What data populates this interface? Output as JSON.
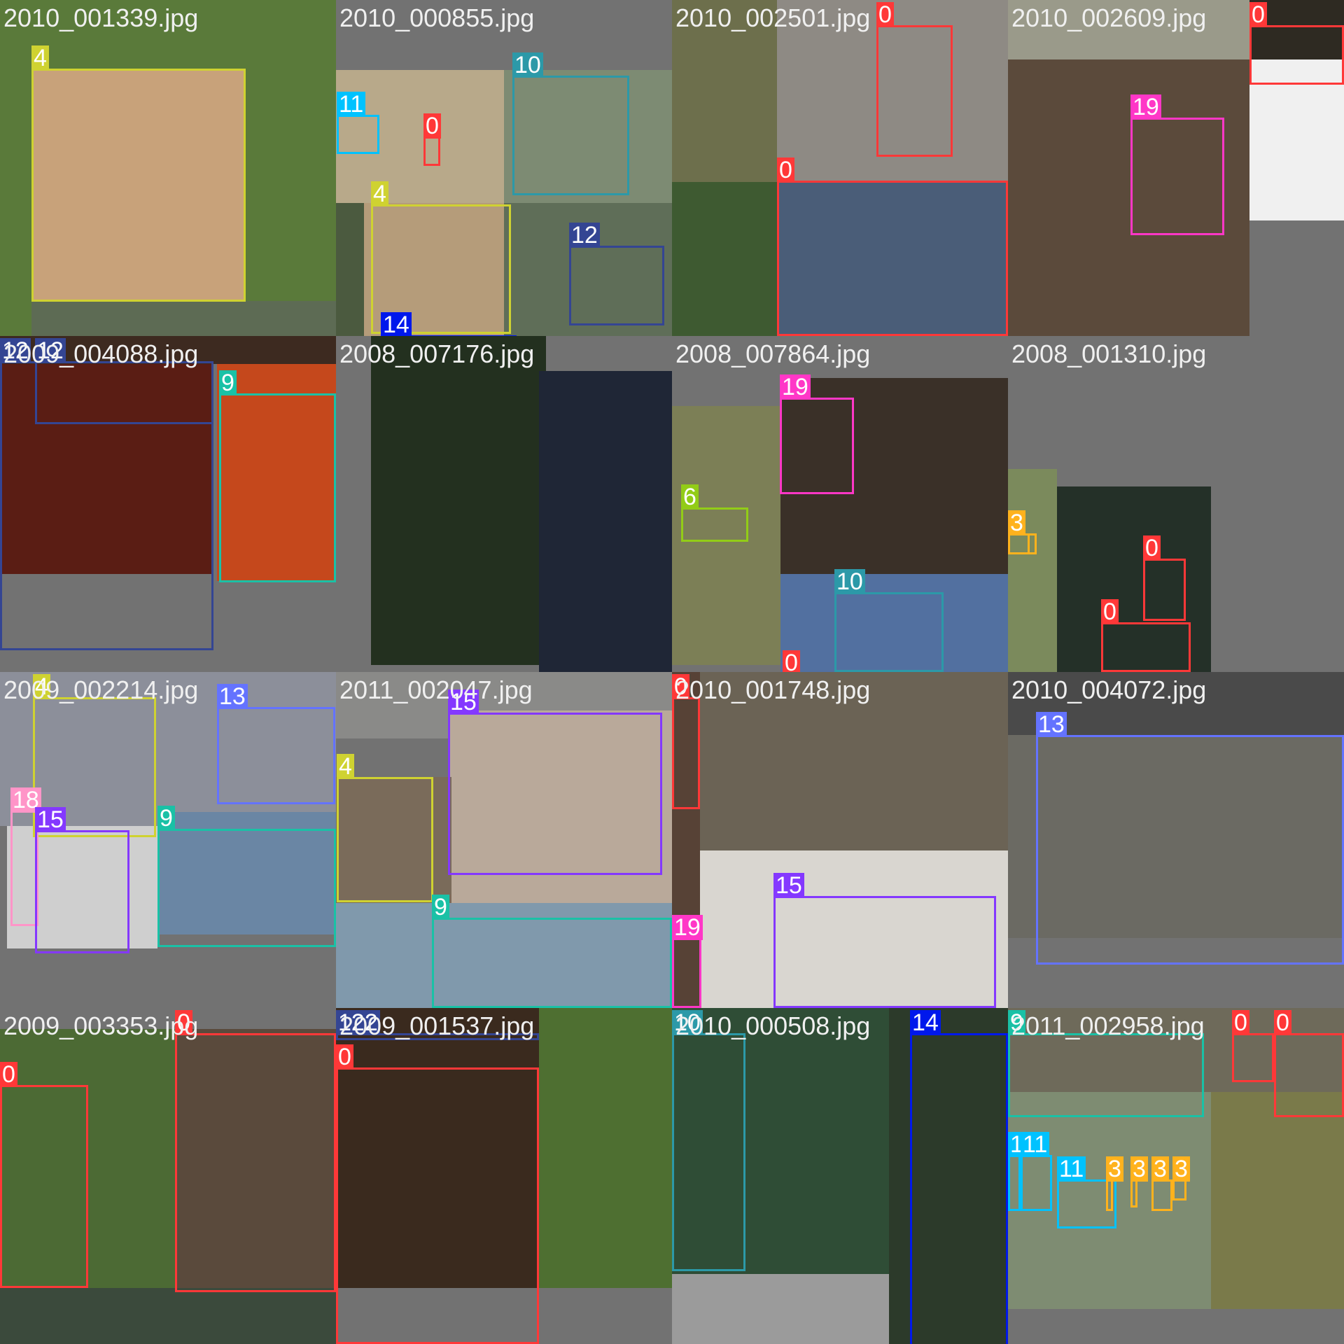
{
  "mosaic": {
    "tiles": [
      {
        "title": "2010_001339.jpg",
        "boxes": [
          {
            "label": "4"
          }
        ]
      },
      {
        "title": "2010_000855.jpg",
        "boxes": [
          {
            "label": "10"
          },
          {
            "label": "11"
          },
          {
            "label": "0"
          },
          {
            "label": "4"
          },
          {
            "label": "12"
          },
          {
            "label": "14"
          }
        ]
      },
      {
        "title": "2010_002501.jpg",
        "boxes": [
          {
            "label": "0"
          },
          {
            "label": "0"
          }
        ]
      },
      {
        "title": "2010_002609.jpg",
        "boxes": [
          {
            "label": "0"
          },
          {
            "label": "19"
          }
        ]
      },
      {
        "title": "2009_004088.jpg",
        "boxes": [
          {
            "label": "12"
          },
          {
            "label": "12"
          },
          {
            "label": "9"
          }
        ]
      },
      {
        "title": "2008_007176.jpg",
        "boxes": []
      },
      {
        "title": "2008_007864.jpg",
        "boxes": [
          {
            "label": "19"
          },
          {
            "label": "6"
          },
          {
            "label": "10"
          },
          {
            "label": "0"
          }
        ]
      },
      {
        "title": "2008_001310.jpg",
        "boxes": [
          {
            "label": "3"
          },
          {
            "label": "3"
          },
          {
            "label": "0"
          },
          {
            "label": "0"
          }
        ]
      },
      {
        "title": "2009_002214.jpg",
        "boxes": [
          {
            "label": "4"
          },
          {
            "label": "13"
          },
          {
            "label": "18"
          },
          {
            "label": "15"
          },
          {
            "label": "9"
          }
        ]
      },
      {
        "title": "2011_002047.jpg",
        "boxes": [
          {
            "label": "15"
          },
          {
            "label": "4"
          },
          {
            "label": "9"
          }
        ]
      },
      {
        "title": "2010_001748.jpg",
        "boxes": [
          {
            "label": "0"
          },
          {
            "label": "15"
          },
          {
            "label": "19"
          }
        ]
      },
      {
        "title": "2010_004072.jpg",
        "boxes": [
          {
            "label": "13"
          }
        ]
      },
      {
        "title": "2009_003353.jpg",
        "boxes": [
          {
            "label": "0"
          },
          {
            "label": "0"
          }
        ]
      },
      {
        "title": "2009_001537.jpg",
        "boxes": [
          {
            "label": "122"
          },
          {
            "label": "0"
          }
        ]
      },
      {
        "title": "2010_000508.jpg",
        "boxes": [
          {
            "label": "10"
          },
          {
            "label": "14"
          }
        ]
      },
      {
        "title": "2011_002958.jpg",
        "boxes": [
          {
            "label": "9"
          },
          {
            "label": "0"
          },
          {
            "label": "0"
          },
          {
            "label": "11"
          },
          {
            "label": "11"
          },
          {
            "label": "11"
          },
          {
            "label": "3"
          },
          {
            "label": "3"
          },
          {
            "label": "3"
          },
          {
            "label": "3"
          }
        ]
      }
    ]
  },
  "class_colors": {
    "0": "#ff3838",
    "3": "#ffb21d",
    "4": "#cfd231",
    "6": "#92cc17",
    "9": "#1ac1a6",
    "10": "#2c99a8",
    "11": "#00c2ff",
    "12": "#344593",
    "13": "#6473ff",
    "14": "#0018ec",
    "15": "#8438ff",
    "18": "#ff95c8",
    "19": "#ff37c7",
    "122": "#344593"
  }
}
